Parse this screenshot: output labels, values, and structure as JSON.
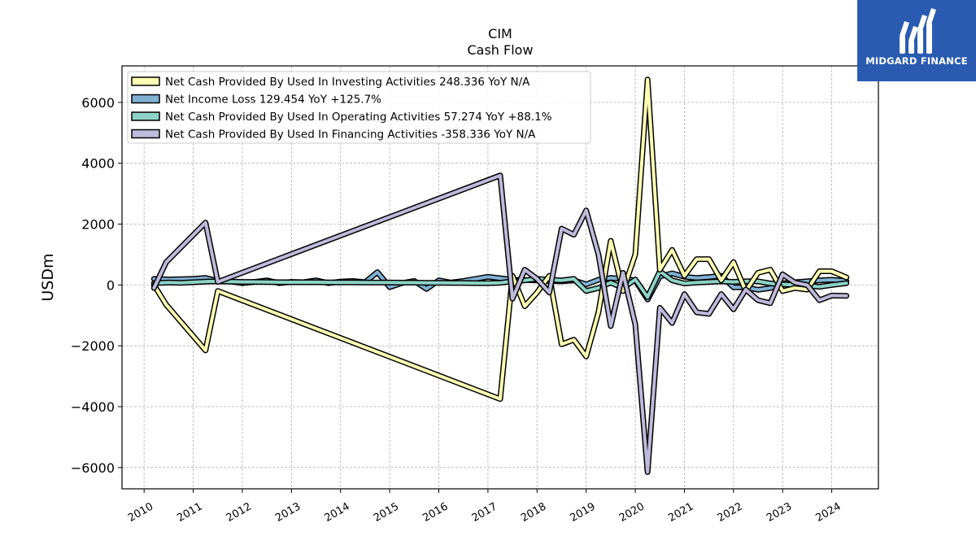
{
  "chart_data": {
    "type": "line",
    "title": "CIM",
    "subtitle": "Cash Flow",
    "ylabel": "USDm",
    "xlabel": "",
    "ylim": [
      -6700,
      7200
    ],
    "xlim": [
      2009.55,
      2024.95
    ],
    "yticks": [
      -6000,
      -4000,
      -2000,
      0,
      2000,
      4000,
      6000
    ],
    "yticklabels": [
      "−6000",
      "−4000",
      "−2000",
      "0",
      "2000",
      "4000",
      "6000"
    ],
    "xticks": [
      2010,
      2011,
      2012,
      2013,
      2014,
      2015,
      2016,
      2017,
      2018,
      2019,
      2020,
      2021,
      2022,
      2023,
      2024
    ],
    "xticklabels": [
      "2010",
      "2011",
      "2012",
      "2013",
      "2014",
      "2015",
      "2016",
      "2017",
      "2018",
      "2019",
      "2020",
      "2021",
      "2022",
      "2023",
      "2024"
    ],
    "grid": true,
    "legend_position": "upper-left",
    "series": [
      {
        "name": "Net Income Loss",
        "legend": "Net Income Loss  129.454 YoY +125.7%",
        "color": "#80b1d3",
        "points": [
          [
            2010.2,
            200
          ],
          [
            2010.5,
            180
          ],
          [
            2010.75,
            190
          ],
          [
            2011.0,
            200
          ],
          [
            2011.25,
            230
          ],
          [
            2011.5,
            130
          ],
          [
            2011.75,
            120
          ],
          [
            2012.0,
            60
          ],
          [
            2012.25,
            100
          ],
          [
            2012.5,
            150
          ],
          [
            2012.75,
            60
          ],
          [
            2013.0,
            100
          ],
          [
            2013.25,
            90
          ],
          [
            2013.5,
            150
          ],
          [
            2013.75,
            60
          ],
          [
            2014.0,
            110
          ],
          [
            2014.25,
            130
          ],
          [
            2014.5,
            90
          ],
          [
            2014.75,
            420
          ],
          [
            2015.0,
            -70
          ],
          [
            2015.25,
            60
          ],
          [
            2015.5,
            130
          ],
          [
            2015.75,
            -130
          ],
          [
            2016.0,
            150
          ],
          [
            2016.25,
            80
          ],
          [
            2016.5,
            130
          ],
          [
            2016.75,
            200
          ],
          [
            2017.0,
            270
          ],
          [
            2017.25,
            220
          ],
          [
            2017.5,
            170
          ],
          [
            2017.75,
            160
          ],
          [
            2018.0,
            150
          ],
          [
            2018.25,
            130
          ],
          [
            2018.5,
            120
          ],
          [
            2018.75,
            150
          ],
          [
            2019.0,
            20
          ],
          [
            2019.25,
            170
          ],
          [
            2019.5,
            230
          ],
          [
            2019.75,
            200
          ],
          [
            2020.0,
            150
          ],
          [
            2020.25,
            -480
          ],
          [
            2020.5,
            280
          ],
          [
            2020.75,
            380
          ],
          [
            2021.0,
            270
          ],
          [
            2021.25,
            230
          ],
          [
            2021.5,
            260
          ],
          [
            2021.75,
            300
          ],
          [
            2022.0,
            -80
          ],
          [
            2022.25,
            -80
          ],
          [
            2022.5,
            -160
          ],
          [
            2022.75,
            -100
          ],
          [
            2023.0,
            50
          ],
          [
            2023.25,
            90
          ],
          [
            2023.5,
            120
          ],
          [
            2023.75,
            150
          ],
          [
            2024.0,
            170
          ],
          [
            2024.3,
            130
          ]
        ]
      },
      {
        "name": "Net Cash Provided By Used In Operating Activities",
        "legend": "Net Cash Provided By Used In Operating Activities  57.274 YoY +88.1%",
        "color": "#8dd3c7",
        "points": [
          [
            2010.2,
            60
          ],
          [
            2010.5,
            80
          ],
          [
            2010.75,
            70
          ],
          [
            2011.0,
            90
          ],
          [
            2011.25,
            110
          ],
          [
            2011.5,
            120
          ],
          [
            2011.75,
            110
          ],
          [
            2012.0,
            100
          ],
          [
            2012.25,
            100
          ],
          [
            2012.5,
            95
          ],
          [
            2012.75,
            90
          ],
          [
            2013.0,
            90
          ],
          [
            2013.25,
            90
          ],
          [
            2013.5,
            90
          ],
          [
            2013.75,
            85
          ],
          [
            2014.0,
            85
          ],
          [
            2014.25,
            85
          ],
          [
            2014.5,
            80
          ],
          [
            2014.75,
            80
          ],
          [
            2015.0,
            80
          ],
          [
            2015.25,
            75
          ],
          [
            2015.5,
            75
          ],
          [
            2015.75,
            70
          ],
          [
            2016.0,
            70
          ],
          [
            2016.25,
            65
          ],
          [
            2016.5,
            65
          ],
          [
            2016.75,
            60
          ],
          [
            2017.0,
            60
          ],
          [
            2017.25,
            70
          ],
          [
            2017.5,
            120
          ],
          [
            2017.75,
            150
          ],
          [
            2018.0,
            200
          ],
          [
            2018.25,
            170
          ],
          [
            2018.5,
            150
          ],
          [
            2018.75,
            200
          ],
          [
            2019.0,
            -200
          ],
          [
            2019.25,
            -100
          ],
          [
            2019.5,
            80
          ],
          [
            2019.75,
            -100
          ],
          [
            2020.0,
            180
          ],
          [
            2020.25,
            -400
          ],
          [
            2020.5,
            450
          ],
          [
            2020.75,
            150
          ],
          [
            2021.0,
            50
          ],
          [
            2021.25,
            80
          ],
          [
            2021.5,
            100
          ],
          [
            2021.75,
            120
          ],
          [
            2022.0,
            100
          ],
          [
            2022.25,
            120
          ],
          [
            2022.5,
            120
          ],
          [
            2022.75,
            50
          ],
          [
            2023.0,
            20
          ],
          [
            2023.25,
            0
          ],
          [
            2023.5,
            -20
          ],
          [
            2023.75,
            -60
          ],
          [
            2024.0,
            0
          ],
          [
            2024.3,
            57
          ]
        ]
      },
      {
        "name": "Net Cash Provided By Used In Investing Activities",
        "legend": "Net Cash Provided By Used In Investing Activities  248.336 YoY N/A",
        "color": "#ffffb3",
        "points": [
          [
            2010.2,
            0
          ],
          [
            2010.45,
            -650
          ],
          [
            2011.25,
            -2150
          ],
          [
            2011.5,
            -200
          ],
          [
            2017.25,
            -3750
          ],
          [
            2017.5,
            300
          ],
          [
            2017.75,
            -700
          ],
          [
            2018.0,
            -250
          ],
          [
            2018.25,
            300
          ],
          [
            2018.5,
            -1950
          ],
          [
            2018.75,
            -1800
          ],
          [
            2019.0,
            -2350
          ],
          [
            2019.25,
            -900
          ],
          [
            2019.5,
            1450
          ],
          [
            2019.75,
            -200
          ],
          [
            2020.0,
            1000
          ],
          [
            2020.25,
            6750
          ],
          [
            2020.5,
            500
          ],
          [
            2020.75,
            1150
          ],
          [
            2021.0,
            300
          ],
          [
            2021.25,
            850
          ],
          [
            2021.5,
            850
          ],
          [
            2021.75,
            150
          ],
          [
            2022.0,
            750
          ],
          [
            2022.25,
            -200
          ],
          [
            2022.5,
            400
          ],
          [
            2022.75,
            500
          ],
          [
            2023.0,
            -200
          ],
          [
            2023.25,
            -100
          ],
          [
            2023.5,
            -150
          ],
          [
            2023.75,
            450
          ],
          [
            2024.0,
            450
          ],
          [
            2024.3,
            248
          ]
        ]
      },
      {
        "name": "Net Cash Provided By Used In Financing Activities",
        "legend": "Net Cash Provided By Used In Financing Activities  -358.336 YoY N/A",
        "color": "#bebada",
        "points": [
          [
            2010.2,
            -100
          ],
          [
            2010.45,
            750
          ],
          [
            2011.25,
            2050
          ],
          [
            2011.5,
            100
          ],
          [
            2017.25,
            3600
          ],
          [
            2017.5,
            -450
          ],
          [
            2017.75,
            500
          ],
          [
            2018.0,
            200
          ],
          [
            2018.25,
            -250
          ],
          [
            2018.5,
            1850
          ],
          [
            2018.75,
            1650
          ],
          [
            2019.0,
            2450
          ],
          [
            2019.25,
            1000
          ],
          [
            2019.5,
            -1350
          ],
          [
            2019.75,
            400
          ],
          [
            2020.0,
            -1300
          ],
          [
            2020.25,
            -6150
          ],
          [
            2020.5,
            -750
          ],
          [
            2020.75,
            -1250
          ],
          [
            2021.0,
            -300
          ],
          [
            2021.25,
            -900
          ],
          [
            2021.5,
            -950
          ],
          [
            2021.75,
            -300
          ],
          [
            2022.0,
            -800
          ],
          [
            2022.25,
            -150
          ],
          [
            2022.5,
            -500
          ],
          [
            2022.75,
            -600
          ],
          [
            2023.0,
            350
          ],
          [
            2023.25,
            80
          ],
          [
            2023.5,
            0
          ],
          [
            2023.75,
            -500
          ],
          [
            2024.0,
            -350
          ],
          [
            2024.3,
            -358
          ]
        ]
      }
    ],
    "legend_order": [
      2,
      0,
      1,
      3
    ]
  },
  "logo": {
    "name": "MIDGARD FINANCE",
    "color": "#2a5bb0"
  }
}
